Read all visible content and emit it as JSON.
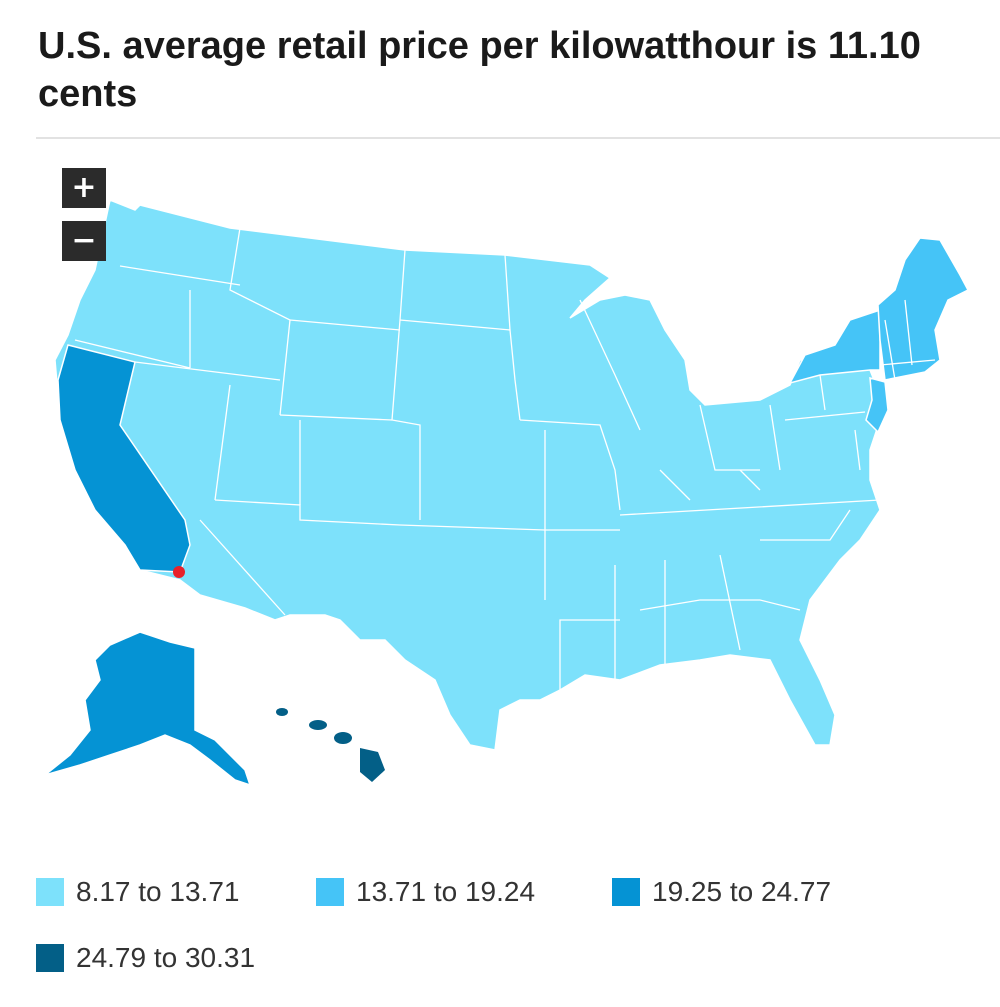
{
  "title": "U.S. average retail price per kilowatthour is 11.10 cents",
  "controls": {
    "zoom_in": "+",
    "zoom_out": "−"
  },
  "colors": {
    "bin1": "#7de1fb",
    "bin2": "#45c4f7",
    "bin3": "#0593d4",
    "bin4": "#035f87",
    "border": "#ffffff",
    "marker": "#e8202a"
  },
  "legend": [
    {
      "label": "8.17 to 13.71",
      "color": "#7de1fb"
    },
    {
      "label": "13.71 to 19.24",
      "color": "#45c4f7"
    },
    {
      "label": "19.25 to 24.77",
      "color": "#0593d4"
    },
    {
      "label": "24.79 to 30.31",
      "color": "#035f87"
    }
  ],
  "regions": [
    {
      "name": "Contiguous U.S. (other states)",
      "bin": 1
    },
    {
      "name": "California",
      "bin": 3
    },
    {
      "name": "New York",
      "bin": 2
    },
    {
      "name": "New Jersey",
      "bin": 2
    },
    {
      "name": "New England",
      "bin": 2
    },
    {
      "name": "Alaska",
      "bin": 3
    },
    {
      "name": "Hawaii",
      "bin": 4
    }
  ],
  "marker": {
    "icon": "location-dot-icon"
  }
}
